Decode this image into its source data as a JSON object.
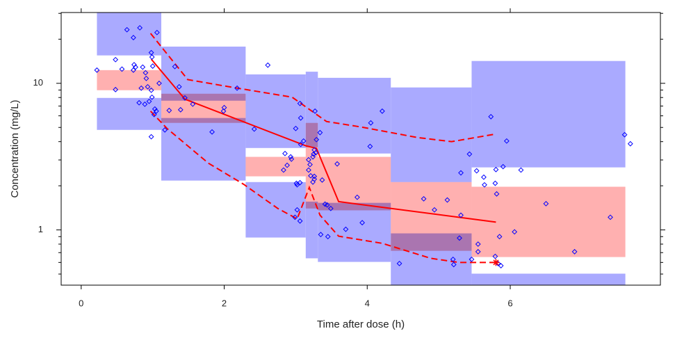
{
  "chart_data": {
    "type": "vpc",
    "x_label": "Time after dose (h)",
    "y_label": "Concentration (mg/L)",
    "xlim": [
      -0.28,
      8.1
    ],
    "ylim": [
      0.42,
      30.4
    ],
    "ylog": true,
    "xticks": [
      0,
      2,
      4,
      6
    ],
    "yticks": [
      1,
      10
    ],
    "yminorticks": [
      0.5,
      0.6,
      0.7,
      0.8,
      0.9,
      2,
      3,
      4,
      5,
      6,
      7,
      8,
      9,
      20,
      30
    ],
    "band_color": "#aaaaff",
    "median_band_color": "#ffb0b0",
    "line_color": "#ff0000",
    "point_color": "#0000ff",
    "bins": [
      {
        "x": [
          0.22,
          1.12
        ],
        "hi": [
          15.5,
          32
        ],
        "mid": [
          8.97,
          12.3
        ],
        "lo": [
          4.81,
          7.95
        ]
      },
      {
        "x": [
          1.12,
          2.3
        ],
        "hi": [
          7.61,
          17.8
        ],
        "mid": [
          5.37,
          8.49
        ],
        "lo": [
          2.17,
          5.8
        ]
      },
      {
        "x": [
          2.3,
          3.14
        ],
        "hi": [
          3.62,
          11.5
        ],
        "mid": [
          2.32,
          3.15
        ],
        "lo": [
          0.887,
          2.12
        ]
      },
      {
        "x": [
          3.14,
          3.31
        ],
        "hi": [
          3.66,
          12
        ],
        "mid": [
          1.4,
          5.37
        ],
        "lo": [
          0.64,
          1.56
        ]
      },
      {
        "x": [
          3.31,
          4.33
        ],
        "hi": [
          3.32,
          10.9
        ],
        "mid": [
          1.36,
          3.15
        ],
        "lo": [
          0.605,
          1.53
        ]
      },
      {
        "x": [
          4.33,
          5.46
        ],
        "hi": [
          2.12,
          9.37
        ],
        "mid": [
          0.72,
          2.12
        ],
        "lo": [
          0.4,
          0.947
        ]
      },
      {
        "x": [
          5.46,
          7.61
        ],
        "hi": [
          2.67,
          14.2
        ],
        "mid": [
          0.653,
          1.97
        ],
        "lo": [
          0.4,
          0.503
        ]
      }
    ],
    "lines": [
      {
        "dash": false,
        "x": [
          0.98,
          1.45,
          3.14,
          3.29,
          3.6,
          5.8
        ],
        "y": [
          14.6,
          7.8,
          3.75,
          3.6,
          1.56,
          1.13
        ]
      },
      {
        "dash": true,
        "x": [
          0.97,
          1.49,
          2.07,
          2.95,
          3.43,
          3.92,
          4.7,
          5.18,
          5.8
        ],
        "y": [
          21.9,
          10.6,
          9.47,
          8.04,
          5.49,
          5.03,
          4.27,
          4.0,
          4.51
        ]
      },
      {
        "dash": true,
        "x": [
          0.97,
          1.2,
          1.78,
          2.27,
          2.75,
          3.02,
          3.19,
          3.34,
          3.6,
          4.21,
          4.89,
          5.28,
          5.8
        ],
        "y": [
          6.46,
          4.92,
          2.85,
          2.05,
          1.4,
          1.19,
          1.95,
          1.26,
          0.906,
          0.81,
          0.64,
          0.6,
          0.6
        ]
      }
    ],
    "flags": {
      "x": [
        5.8
      ],
      "y": [
        0.6
      ]
    },
    "points": {
      "x": [
        0.22,
        0.48,
        0.48,
        0.64,
        0.73,
        0.74,
        0.76,
        0.82,
        0.73,
        0.57,
        0.86,
        0.9,
        1.0,
        0.98,
        0.99,
        1.06,
        0.91,
        0.84,
        0.81,
        0.89,
        0.95,
        0.99,
        0.93,
        0.98,
        1.03,
        1.05,
        1.02,
        1.09,
        1.17,
        0.98,
        1.31,
        1.37,
        1.23,
        1.39,
        1.45,
        1.83,
        2.0,
        1.99,
        1.56,
        2.18,
        2.61,
        2.42,
        2.85,
        2.83,
        2.88,
        2.93,
        2.94,
        3.0,
        3.06,
        3.07,
        3.07,
        3.11,
        3.02,
        3.06,
        2.99,
        3.01,
        3.02,
        3.06,
        3.18,
        3.18,
        3.2,
        3.21,
        3.24,
        3.25,
        3.26,
        3.26,
        3.26,
        3.28,
        3.24,
        3.27,
        3.29,
        3.34,
        3.37,
        3.41,
        3.44,
        3.49,
        3.58,
        3.35,
        3.45,
        3.7,
        3.86,
        3.93,
        4.04,
        4.05,
        4.21,
        4.45,
        4.79,
        4.94,
        5.12,
        5.29,
        5.31,
        5.31,
        5.2,
        5.21,
        5.46,
        5.43,
        5.53,
        5.55,
        5.55,
        5.63,
        5.64,
        5.73,
        5.8,
        5.79,
        5.81,
        5.83,
        5.79,
        5.85,
        5.87,
        5.9,
        5.95,
        6.06,
        6.15,
        6.5,
        6.9,
        7.4,
        7.6,
        7.68
      ],
      "y": [
        12.3,
        14.5,
        9.06,
        23.2,
        20.5,
        13.4,
        12.9,
        23.9,
        12.3,
        12.5,
        12.9,
        11.8,
        13.1,
        16.2,
        15.1,
        22.2,
        10.8,
        9.27,
        7.37,
        7.2,
        7.53,
        8.04,
        9.47,
        8.97,
        6.68,
        6.46,
        6.12,
        10,
        4.81,
        4.32,
        13,
        9.47,
        6.53,
        6.6,
        7.95,
        4.66,
        6.83,
        6.46,
        7.21,
        9.27,
        13.3,
        4.87,
        3.32,
        2.56,
        2.76,
        3.15,
        3.04,
        4.92,
        7.29,
        5.8,
        3.83,
        4.04,
        1.37,
        1.15,
        1.22,
        2.08,
        2.03,
        2.1,
        3.01,
        2.56,
        2.79,
        2.34,
        3.15,
        3.29,
        3.51,
        2.32,
        2.22,
        3.36,
        2.12,
        6.46,
        4.13,
        4.61,
        2.19,
        1.5,
        1.48,
        1.4,
        2.82,
        0.93,
        0.9,
        1.01,
        1.67,
        1.12,
        3.71,
        5.37,
        6.46,
        0.59,
        1.63,
        1.37,
        1.6,
        0.88,
        2.45,
        1.26,
        0.63,
        0.58,
        0.63,
        3.29,
        2.53,
        0.71,
        0.8,
        2.29,
        2.03,
        5.92,
        2.58,
        2.08,
        1.76,
        0.59,
        0.66,
        0.9,
        0.57,
        2.7,
        4.04,
        0.97,
        2.56,
        1.51,
        0.71,
        1.22,
        4.46,
        3.87
      ]
    }
  }
}
